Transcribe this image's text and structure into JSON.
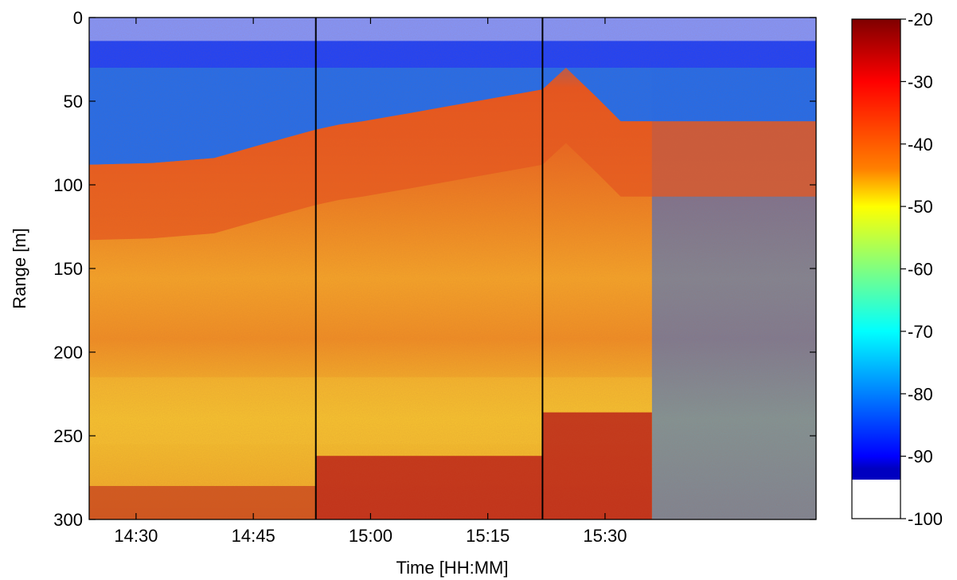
{
  "chart_data": {
    "type": "heatmap",
    "title": "",
    "xlabel": "Time [HH:MM]",
    "ylabel": "Range [m]",
    "y_axis_inverted": true,
    "ylim": [
      0,
      300
    ],
    "yticks": [
      0,
      50,
      100,
      150,
      200,
      250,
      300
    ],
    "xlim_minutes": [
      864,
      957
    ],
    "xticks": [
      {
        "label": "14:30",
        "minutes": 870
      },
      {
        "label": "14:45",
        "minutes": 885
      },
      {
        "label": "15:00",
        "minutes": 900
      },
      {
        "label": "15:15",
        "minutes": 915
      },
      {
        "label": "15:30",
        "minutes": 930
      }
    ],
    "segment_dividers_minutes": [
      893,
      922
    ],
    "colorbar": {
      "min": -100,
      "max": -20,
      "ticks": [
        -20,
        -30,
        -40,
        -50,
        -60,
        -70,
        -80,
        -90,
        -100
      ],
      "colormap": "jet",
      "below_min_color": "#ffffff"
    },
    "colors": {
      "noise_band": "#1a3cff",
      "water_column": "#1e6ef0",
      "surface_layer": "#e8581e",
      "mid_layer": "#f5c232",
      "bottom_echo": "#b81515"
    },
    "features": {
      "noise_band_range_m": [
        0,
        30
      ],
      "surface_boundary": [
        {
          "minutes": 864,
          "range": 88
        },
        {
          "minutes": 872,
          "range": 87
        },
        {
          "minutes": 880,
          "range": 84
        },
        {
          "minutes": 886,
          "range": 76
        },
        {
          "minutes": 893,
          "range": 67
        },
        {
          "minutes": 896,
          "range": 64
        },
        {
          "minutes": 899,
          "range": 62
        },
        {
          "minutes": 904,
          "range": 58
        },
        {
          "minutes": 910,
          "range": 53
        },
        {
          "minutes": 916,
          "range": 48
        },
        {
          "minutes": 922,
          "range": 43
        },
        {
          "minutes": 925,
          "range": 30
        },
        {
          "minutes": 929,
          "range": 48
        },
        {
          "minutes": 932,
          "range": 62
        },
        {
          "minutes": 957,
          "range": 62
        }
      ],
      "bottom_echo": [
        {
          "from_minutes": 864,
          "to_minutes": 893,
          "range": 280
        },
        {
          "from_minutes": 893,
          "to_minutes": 922,
          "range": 262
        },
        {
          "from_minutes": 922,
          "to_minutes": 936,
          "range": 236
        }
      ]
    }
  }
}
